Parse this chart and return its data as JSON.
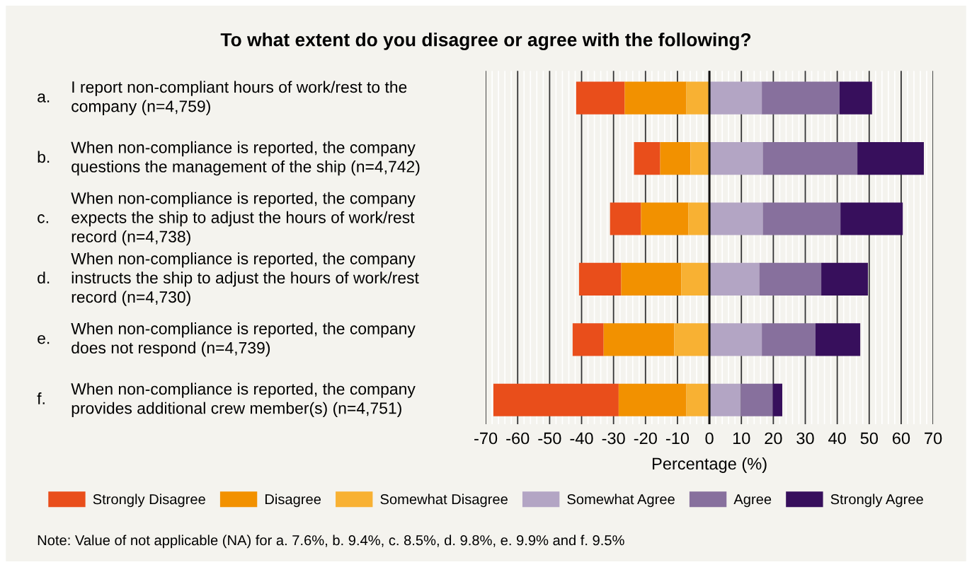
{
  "chart_data": {
    "type": "bar",
    "orientation": "horizontal",
    "title": "To what extent do you disagree or agree with the following?",
    "categories": [
      "a. I report non-compliant hours of work/rest to the\ncompany (n=4,759)",
      "b. When non-compliance is reported, the company\nquestions the management of the ship (n=4,742)",
      "c. When non-compliance is reported, the company\nexpects the ship to adjust the hours of work/rest\nrecord (n=4,738)",
      "d. When non-compliance is reported, the company\ninstructs the ship to adjust the hours of work/rest\nrecord (n=4,730)",
      "e. When non-compliance is reported, the company\ndoes not respond (n=4,739)",
      "f. When non-compliance is reported, the company\nprovides additional crew member(s) (n=4,751)"
    ],
    "series": [
      {
        "name": "Strongly Disagree",
        "color": "#e94e1b",
        "values": [
          15.2,
          8.2,
          9.7,
          13.2,
          9.7,
          39.2
        ],
        "base": [
          -41.7,
          -23.6,
          -31.1,
          -40.8,
          -42.8,
          -67.6
        ]
      },
      {
        "name": "Disagree",
        "color": "#f29100",
        "values": [
          19.3,
          9.5,
          14.8,
          18.8,
          22.1,
          21.2
        ],
        "base": [
          -26.5,
          -15.4,
          -21.4,
          -27.6,
          -33.1,
          -28.4
        ]
      },
      {
        "name": "Somewhat Disagree",
        "color": "#f8b133",
        "values": [
          7.2,
          5.9,
          6.6,
          8.8,
          11.0,
          7.2
        ],
        "base": [
          -7.2,
          -5.9,
          -6.6,
          -8.8,
          -11.0,
          -7.2
        ]
      },
      {
        "name": "Somewhat Agree",
        "color": "#b3a5c4",
        "values": [
          16.4,
          16.7,
          16.7,
          15.6,
          16.4,
          9.8
        ],
        "base": [
          0,
          0,
          0,
          0,
          0,
          0
        ]
      },
      {
        "name": "Agree",
        "color": "#87709d",
        "values": [
          24.3,
          29.6,
          24.3,
          19.4,
          16.8,
          10.0
        ],
        "base": [
          16.4,
          16.7,
          16.7,
          15.6,
          16.4,
          9.8
        ]
      },
      {
        "name": "Strongly Agree",
        "color": "#370f5c",
        "values": [
          10.2,
          20.8,
          19.5,
          14.6,
          14.0,
          3.0
        ],
        "base": [
          40.7,
          46.3,
          41.0,
          35.0,
          33.2,
          19.8
        ]
      }
    ],
    "xlabel": "Percentage (%)",
    "xlim": [
      -70,
      70
    ],
    "xticks": [
      -70,
      -60,
      -50,
      -40,
      -30,
      -20,
      -10,
      0,
      10,
      20,
      30,
      40,
      50,
      60,
      70
    ],
    "ref_lines": [
      {
        "axis": "x",
        "value": 0,
        "color": "#111111"
      }
    ],
    "grid": "x",
    "legend": "bottom",
    "annotations": [
      "Note: Value of not applicable (NA) for a. 7.6%, b. 9.4%, c. 8.5%, d. 9.8%, e. 9.9% and f. 9.5%"
    ]
  }
}
